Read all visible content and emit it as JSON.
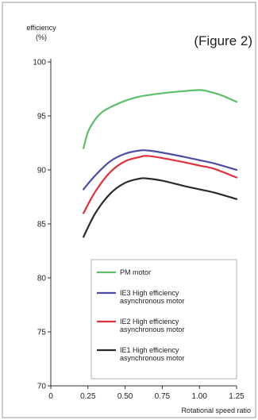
{
  "chart_data": {
    "type": "line",
    "figure_label": "(Figure 2)",
    "ylabel_line1": "efficiency",
    "ylabel_line2": "(%)",
    "xlabel": "Rotational speed ratio",
    "xlim": [
      0,
      1.25
    ],
    "ylim": [
      70,
      100
    ],
    "xticks": [
      0,
      0.25,
      0.5,
      0.75,
      1.0,
      1.25
    ],
    "xtick_labels": [
      "0",
      "0.25",
      "0.50",
      "0.75",
      "1.00",
      "1.25"
    ],
    "yticks": [
      70,
      75,
      80,
      85,
      90,
      95,
      100
    ],
    "ytick_labels": [
      "70",
      "75",
      "80",
      "85",
      "90",
      "95",
      "100"
    ],
    "grid": false,
    "legend_position": "bottom-right",
    "series": [
      {
        "name": "PM motor",
        "color": "#5cbf6a",
        "x": [
          0.22,
          0.25,
          0.3,
          0.35,
          0.4,
          0.5,
          0.6,
          0.75,
          0.9,
          1.0,
          1.05,
          1.15,
          1.25
        ],
        "y": [
          92.0,
          93.5,
          94.7,
          95.4,
          95.8,
          96.4,
          96.8,
          97.1,
          97.3,
          97.4,
          97.3,
          96.9,
          96.3
        ]
      },
      {
        "name": "IE3 High efficiency asynchronous motor",
        "label_lines": [
          "IE3 High efficiency",
          "asynchronous motor"
        ],
        "color": "#4c4ca6",
        "x": [
          0.22,
          0.3,
          0.4,
          0.5,
          0.6,
          0.65,
          0.75,
          0.9,
          1.0,
          1.1,
          1.25
        ],
        "y": [
          88.2,
          89.5,
          90.8,
          91.5,
          91.8,
          91.8,
          91.6,
          91.2,
          90.9,
          90.6,
          90.0
        ]
      },
      {
        "name": "IE2 High efficiency asynchronous motor",
        "label_lines": [
          "IE2 High efficiency",
          "asynchronous motor"
        ],
        "color": "#e0303a",
        "x": [
          0.22,
          0.3,
          0.4,
          0.5,
          0.6,
          0.65,
          0.75,
          0.9,
          1.0,
          1.1,
          1.25
        ],
        "y": [
          86.0,
          88.0,
          89.8,
          90.8,
          91.2,
          91.3,
          91.1,
          90.7,
          90.4,
          90.1,
          89.3
        ]
      },
      {
        "name": "IE1 High efficiency asynchronous motor",
        "label_lines": [
          "IE1 High efficiency",
          "asynchronous motor"
        ],
        "color": "#2a2a2a",
        "x": [
          0.22,
          0.3,
          0.4,
          0.5,
          0.6,
          0.65,
          0.75,
          0.9,
          1.0,
          1.1,
          1.25
        ],
        "y": [
          83.8,
          86.0,
          87.8,
          88.8,
          89.2,
          89.2,
          89.0,
          88.5,
          88.2,
          87.9,
          87.3
        ]
      }
    ]
  }
}
